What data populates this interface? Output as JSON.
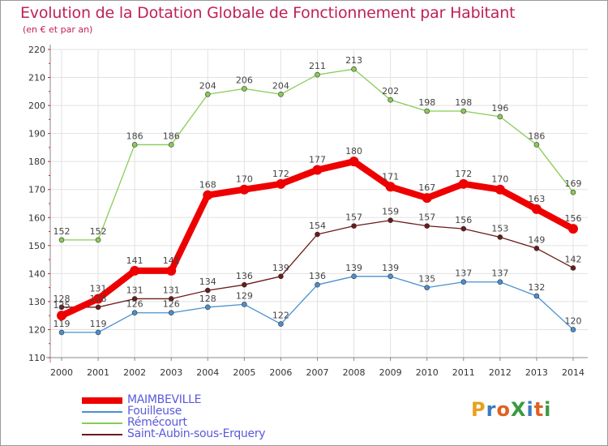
{
  "title": "Evolution de la Dotation Globale de Fonctionnement par Habitant",
  "subtitle": "(en € et par an)",
  "logo": {
    "text": "ProXiti",
    "letters": [
      "P",
      "r",
      "o",
      "X",
      "i",
      "t",
      "i"
    ],
    "colors": [
      "#e8a020",
      "#3a7ac0",
      "#e06020",
      "#3a9a40",
      "#3a7ac0",
      "#e06020",
      "#3a9a40"
    ]
  },
  "chart_data": {
    "type": "line",
    "title": "Evolution de la Dotation Globale de Fonctionnement par Habitant",
    "subtitle": "(en € et par an)",
    "xlabel": "",
    "ylabel": "",
    "ylim": [
      110,
      220
    ],
    "yticks": [
      110,
      120,
      130,
      140,
      150,
      160,
      170,
      180,
      190,
      200,
      210,
      220
    ],
    "x": [
      "2000",
      "2001",
      "2002",
      "2003",
      "2004",
      "2005",
      "2006",
      "2007",
      "2008",
      "2009",
      "2010",
      "2011",
      "2012",
      "2013",
      "2014"
    ],
    "grid": true,
    "legend_position": "bottom-left",
    "series": [
      {
        "name": "Saint-Aubin-sous-Erquery",
        "color": "#6b1a1a",
        "values": [
          128,
          128,
          131,
          131,
          134,
          136,
          139,
          154,
          157,
          159,
          157,
          156,
          153,
          149,
          142
        ]
      },
      {
        "name": "Fouilleuse",
        "color": "#4a90d0",
        "values": [
          119,
          119,
          126,
          126,
          128,
          129,
          122,
          136,
          139,
          139,
          135,
          137,
          137,
          132,
          120
        ]
      },
      {
        "name": "Rémécourt",
        "color": "#88cc55",
        "values": [
          152,
          152,
          186,
          186,
          204,
          206,
          204,
          211,
          213,
          202,
          198,
          198,
          196,
          186,
          169
        ]
      },
      {
        "name": "MAIMBEVILLE",
        "color": "#ee0000",
        "values": [
          125,
          131,
          141,
          141,
          168,
          170,
          172,
          177,
          180,
          171,
          167,
          172,
          170,
          163,
          156
        ]
      }
    ],
    "legend": [
      "MAIMBEVILLE",
      "Fouilleuse",
      "Rémécourt",
      "Saint-Aubin-sous-Erquery"
    ]
  }
}
